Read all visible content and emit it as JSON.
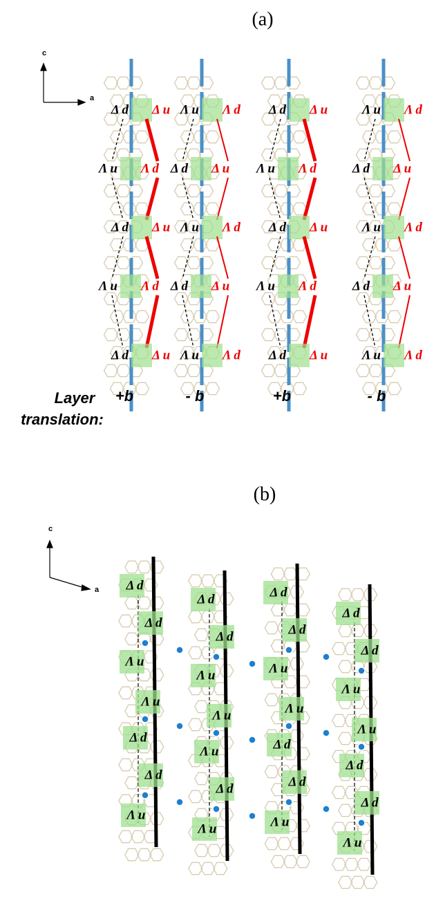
{
  "part_a": {
    "label": "(a)",
    "axes": {
      "c": "c",
      "a": "a"
    },
    "columns": [
      {
        "left": [
          "Δ d",
          "Λ u",
          "Δ d",
          "Λ u",
          "Δ d"
        ],
        "right": [
          "Δ u",
          "Λ d",
          "Δ u",
          "Λ d",
          "Δ u"
        ],
        "translation": "+b"
      },
      {
        "left": [
          "Λ u",
          "Δ d",
          "Λ u",
          "Δ d",
          "Λ u"
        ],
        "right": [
          "Λ d",
          "Δ u",
          "Λ d",
          "Δ u",
          "Λ d"
        ],
        "translation": "- b"
      },
      {
        "left": [
          "Δ d",
          "Λ u",
          "Δ d",
          "Λ u",
          "Δ d"
        ],
        "right": [
          "Δ u",
          "Λ d",
          "Δ u",
          "Λ d",
          "Δ u"
        ],
        "translation": "+b"
      },
      {
        "left": [
          "Λ u",
          "Δ d",
          "Λ u",
          "Δ d",
          "Λ u"
        ],
        "right": [
          "Λ d",
          "Δ u",
          "Λ d",
          "Δ u",
          "Λ d"
        ],
        "translation": "- b"
      }
    ],
    "layer_translation": [
      "Layer",
      "translation:"
    ]
  },
  "part_b": {
    "label": "(b)",
    "axes": {
      "c": "c",
      "a": "a"
    },
    "columns": [
      {
        "labels": [
          "Δ d",
          "Δ d",
          "Λ u",
          "Λ u",
          "Δ d",
          "Δ d",
          "Λ u"
        ]
      },
      {
        "labels": [
          "Δ d",
          "Δ d",
          "Λ u",
          "Λ u",
          "Λ u",
          "Δ d",
          "Λ u"
        ]
      },
      {
        "labels": [
          "Δ d",
          "Δ d",
          "Λ u",
          "Λ u",
          "Δ d",
          "Δ d",
          "Λ u"
        ]
      },
      {
        "labels": [
          "Δ d",
          "Δ d",
          "Λ u",
          "Λ u",
          "Δ d",
          "Δ d",
          "Λ u"
        ]
      }
    ]
  }
}
